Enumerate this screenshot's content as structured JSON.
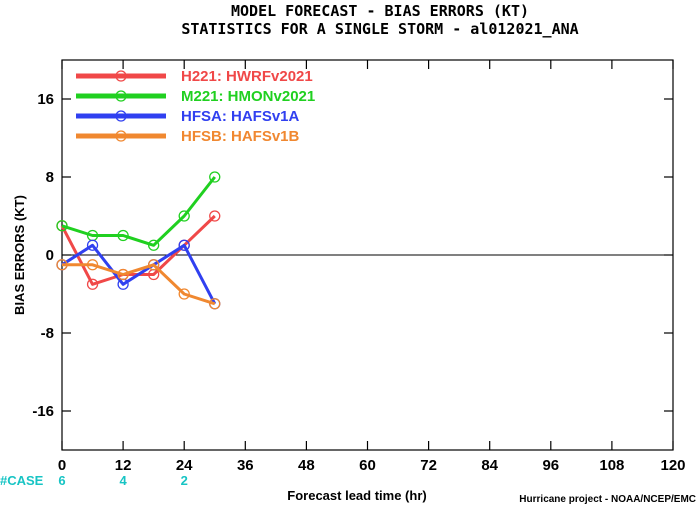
{
  "titles": {
    "line1": "MODEL FORECAST - BIAS ERRORS (KT)",
    "line2": "STATISTICS FOR A SINGLE STORM - al012021_ANA"
  },
  "credit": "Hurricane project - NOAA/NCEP/EMC",
  "case_label": "#CASE",
  "cases": [
    {
      "x": 0,
      "n": "6"
    },
    {
      "x": 12,
      "n": "4"
    },
    {
      "x": 24,
      "n": "2"
    }
  ],
  "chart_data": {
    "type": "line",
    "xlabel": "Forecast lead time (hr)",
    "ylabel": "BIAS ERRORS (KT)",
    "xlim": [
      0,
      120
    ],
    "ylim": [
      -20,
      20
    ],
    "xticks": [
      0,
      12,
      24,
      36,
      48,
      60,
      72,
      84,
      96,
      108,
      120
    ],
    "yticks": [
      16,
      8,
      0,
      -8,
      -16
    ],
    "ytick_labels": [
      "16",
      "8",
      "0",
      "-8",
      "-16"
    ],
    "zero_line": true,
    "grid": false,
    "legend_position": "top-left",
    "series": [
      {
        "name": "H221: HWRFv2021",
        "color": "#f04848",
        "x": [
          0,
          6,
          12,
          18,
          24,
          30
        ],
        "y": [
          3,
          -3,
          -2,
          -2,
          1,
          4
        ]
      },
      {
        "name": "M221: HMONv2021",
        "color": "#20d020",
        "x": [
          0,
          6,
          12,
          18,
          24,
          30
        ],
        "y": [
          3,
          2,
          2,
          1,
          4,
          8
        ]
      },
      {
        "name": "HFSA: HAFSv1A",
        "color": "#3040f0",
        "x": [
          0,
          6,
          12,
          18,
          24,
          30
        ],
        "y": [
          -1,
          1,
          -3,
          -1,
          1,
          -5
        ]
      },
      {
        "name": "HFSB: HAFSv1B",
        "color": "#f08830",
        "x": [
          0,
          6,
          12,
          18,
          24,
          30
        ],
        "y": [
          -1,
          -1,
          -2,
          -1,
          -4,
          -5
        ]
      }
    ]
  }
}
